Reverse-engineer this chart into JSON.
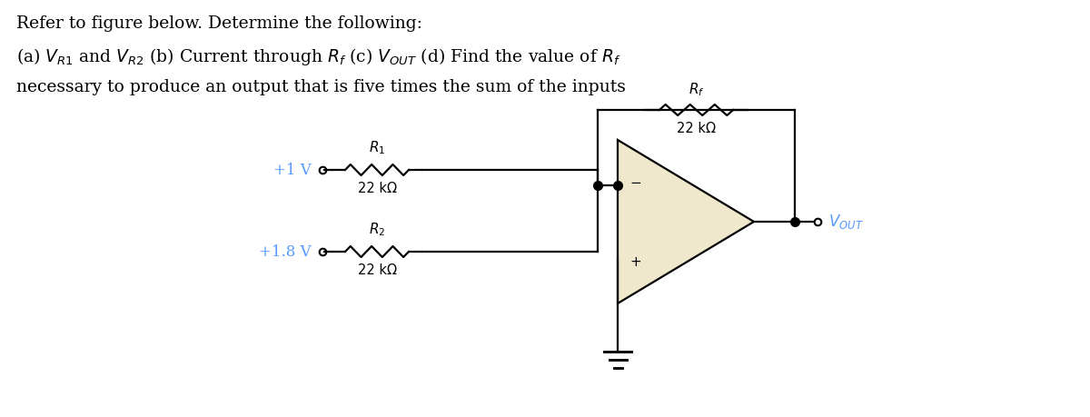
{
  "title_line1": "Refer to figure below. Determine the following:",
  "title_line2": "(a) $V_{R1}$ and $V_{R2}$ (b) Current through $R_f$ (c) $V_{OUT}$ (d) Find the value of $R_f$",
  "title_line3": "necessary to produce an output that is five times the sum of the inputs",
  "v1_label": "+1 V",
  "v2_label": "+1.8 V",
  "r1_label": "$R_1$",
  "r2_label": "$R_2$",
  "rf_label": "$R_f$",
  "r1_val": "22 kΩ",
  "r2_val": "22 kΩ",
  "rf_val": "22 kΩ",
  "vout_label": "$V_{OUT}$",
  "bg_color": "#ffffff",
  "text_color": "#000000",
  "v1_color": "#5599ff",
  "v2_color": "#5599ff",
  "vout_color": "#5599ff",
  "opamp_fill": "#f0e8cc",
  "wire_color": "#000000",
  "ground_color": "#000000",
  "lw": 1.6,
  "res_amp": 0.06,
  "res_n": 6,
  "dot_ms": 7
}
